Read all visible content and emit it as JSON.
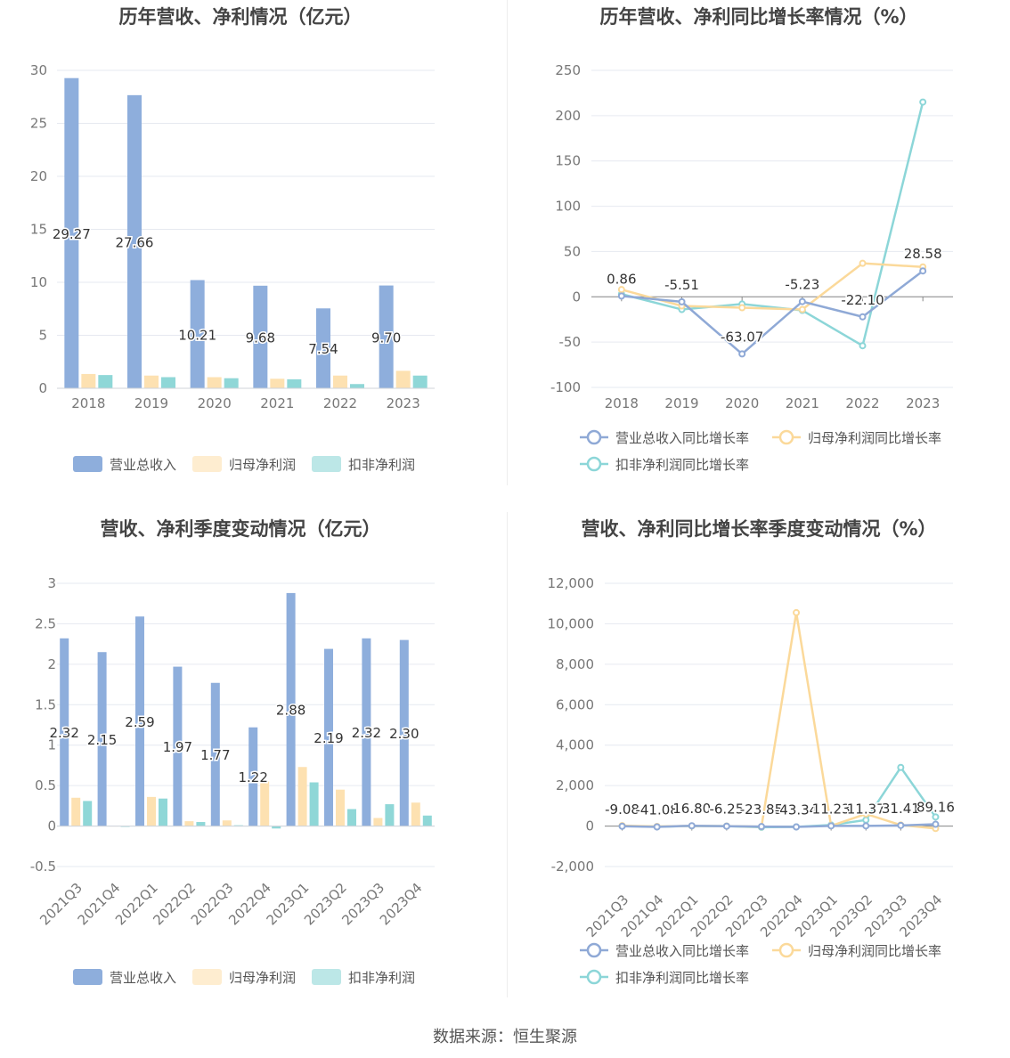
{
  "source_label": "数据来源：恒生聚源",
  "colors": {
    "revenue": "#8eaedc",
    "net_profit": "#fde1b1",
    "deducted": "#8fd7d7",
    "revenue_line": "#8fa9d6",
    "net_profit_line": "#fbd99a",
    "deducted_line": "#8cd6d8"
  },
  "chart_data": [
    {
      "id": "annual-revenue-profit",
      "type": "bar",
      "title": "历年营收、净利情况（亿元）",
      "categories": [
        "2018",
        "2019",
        "2020",
        "2021",
        "2022",
        "2023"
      ],
      "series": [
        {
          "name": "营业总收入",
          "color_key": "revenue",
          "values": [
            29.27,
            27.66,
            10.21,
            9.68,
            7.54,
            9.7
          ]
        },
        {
          "name": "归母净利润",
          "color_key": "net_profit",
          "values": [
            1.35,
            1.2,
            1.05,
            0.9,
            1.2,
            1.65
          ]
        },
        {
          "name": "扣非净利润",
          "color_key": "deducted",
          "values": [
            1.25,
            1.05,
            0.95,
            0.85,
            0.4,
            1.2
          ]
        }
      ],
      "data_labels": [
        "29.27",
        "27.66",
        "10.21",
        "9.68",
        "7.54",
        "9.70"
      ],
      "ylim": [
        0,
        30
      ],
      "yticks": [
        "0",
        "5",
        "10",
        "15",
        "20",
        "25",
        "30"
      ],
      "legend": "bottom",
      "grid": true
    },
    {
      "id": "annual-growth",
      "type": "line",
      "title": "历年营收、净利同比增长率情况（%）",
      "categories": [
        "2018",
        "2019",
        "2020",
        "2021",
        "2022",
        "2023"
      ],
      "series": [
        {
          "name": "营业总收入同比增长率",
          "color_key": "revenue_line",
          "values": [
            0.86,
            -5.51,
            -63.07,
            -5.23,
            -22.1,
            28.58
          ]
        },
        {
          "name": "归母净利润同比增长率",
          "color_key": "net_profit_line",
          "values": [
            8,
            -10,
            -12,
            -14,
            37,
            33
          ]
        },
        {
          "name": "扣非净利润同比增长率",
          "color_key": "deducted_line",
          "values": [
            3,
            -14,
            -8,
            -15,
            -54,
            215
          ]
        }
      ],
      "data_labels": [
        "0.86",
        "-5.51",
        "-63.07",
        "-5.23",
        "-22.10",
        "28.58"
      ],
      "ylim": [
        -100,
        250
      ],
      "yticks": [
        "-100",
        "-50",
        "0",
        "50",
        "100",
        "150",
        "200",
        "250"
      ],
      "legend": "bottom",
      "grid": true
    },
    {
      "id": "quarterly-revenue-profit",
      "type": "bar",
      "title": "营收、净利季度变动情况（亿元）",
      "categories": [
        "2021Q3",
        "2021Q4",
        "2022Q1",
        "2022Q2",
        "2022Q3",
        "2022Q4",
        "2023Q1",
        "2023Q2",
        "2023Q3",
        "2023Q4"
      ],
      "series": [
        {
          "name": "营业总收入",
          "color_key": "revenue",
          "values": [
            2.32,
            2.15,
            2.59,
            1.97,
            1.77,
            1.22,
            2.88,
            2.19,
            2.32,
            2.3
          ]
        },
        {
          "name": "归母净利润",
          "color_key": "net_profit",
          "values": [
            0.35,
            0.0,
            0.36,
            0.06,
            0.07,
            0.55,
            0.73,
            0.45,
            0.1,
            0.29
          ]
        },
        {
          "name": "扣非净利润",
          "color_key": "deducted",
          "values": [
            0.31,
            -0.01,
            0.34,
            0.05,
            0.01,
            -0.03,
            0.54,
            0.21,
            0.27,
            0.13
          ]
        }
      ],
      "data_labels": [
        "2.32",
        "2.15",
        "2.59",
        "1.97",
        "1.77",
        "1.22",
        "2.88",
        "2.19",
        "2.32",
        "2.30"
      ],
      "ylim": [
        -0.5,
        3
      ],
      "yticks": [
        "-0.5",
        "0",
        "0.5",
        "1",
        "1.5",
        "2",
        "2.5",
        "3"
      ],
      "legend": "bottom",
      "grid": true
    },
    {
      "id": "quarterly-growth",
      "type": "line",
      "title": "营收、净利同比增长率季度变动情况（%）",
      "categories": [
        "2021Q3",
        "2021Q4",
        "2022Q1",
        "2022Q2",
        "2022Q3",
        "2022Q4",
        "2023Q1",
        "2023Q2",
        "2023Q3",
        "2023Q4"
      ],
      "series": [
        {
          "name": "营业总收入同比增长率",
          "color_key": "revenue_line",
          "values": [
            -9.08,
            -41.08,
            16.8,
            -6.25,
            -23.85,
            -43.34,
            11.23,
            11.37,
            31.41,
            89.16
          ]
        },
        {
          "name": "归母净利润同比增长率",
          "color_key": "net_profit_line",
          "values": [
            20,
            -20,
            10,
            -5,
            -30,
            10550,
            10,
            600,
            50,
            -120
          ]
        },
        {
          "name": "扣非净利润同比增长率",
          "color_key": "deducted_line",
          "values": [
            10,
            -30,
            5,
            0,
            -60,
            -40,
            50,
            300,
            2900,
            450
          ]
        }
      ],
      "data_labels": [
        "-9.08",
        "-41.08",
        "16.80",
        "-6.25",
        "-23.85",
        "-43.34",
        "11.23",
        "11.37",
        "31.41",
        "89.16"
      ],
      "ylim": [
        -2000,
        12000
      ],
      "yticks": [
        "-2,000",
        "0",
        "2,000",
        "4,000",
        "6,000",
        "8,000",
        "10,000",
        "12,000"
      ],
      "legend": "bottom",
      "grid": true
    }
  ]
}
